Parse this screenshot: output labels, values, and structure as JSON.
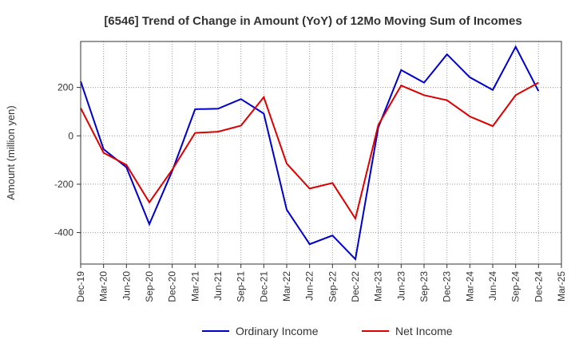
{
  "chart_data": {
    "type": "line",
    "title": "[6546]  Trend of Change in Amount (YoY) of 12Mo Moving Sum of Incomes",
    "xlabel": "",
    "ylabel": "Amount (million yen)",
    "categories": [
      "Dec-19",
      "Mar-20",
      "Jun-20",
      "Sep-20",
      "Dec-20",
      "Mar-21",
      "Jun-21",
      "Sep-21",
      "Dec-21",
      "Mar-22",
      "Jun-22",
      "Sep-22",
      "Dec-22",
      "Mar-23",
      "Jun-23",
      "Sep-23",
      "Dec-23",
      "Mar-24",
      "Jun-24",
      "Sep-24",
      "Dec-24",
      "Mar-25"
    ],
    "ylim": [
      -530,
      390
    ],
    "yticks": [
      -400,
      -200,
      0,
      200
    ],
    "grid": true,
    "legend_position": "bottom",
    "series": [
      {
        "name": "Ordinary Income",
        "color": "#0000cc",
        "values": [
          225,
          -55,
          -130,
          -365,
          -145,
          110,
          112,
          152,
          92,
          -305,
          -448,
          -412,
          -510,
          35,
          272,
          220,
          337,
          242,
          190,
          368,
          185,
          null
        ]
      },
      {
        "name": "Net Income",
        "color": "#dd0000",
        "values": [
          115,
          -70,
          -120,
          -275,
          -140,
          12,
          17,
          42,
          160,
          -115,
          -218,
          -195,
          -342,
          45,
          208,
          168,
          147,
          80,
          40,
          168,
          220,
          null
        ]
      }
    ]
  }
}
